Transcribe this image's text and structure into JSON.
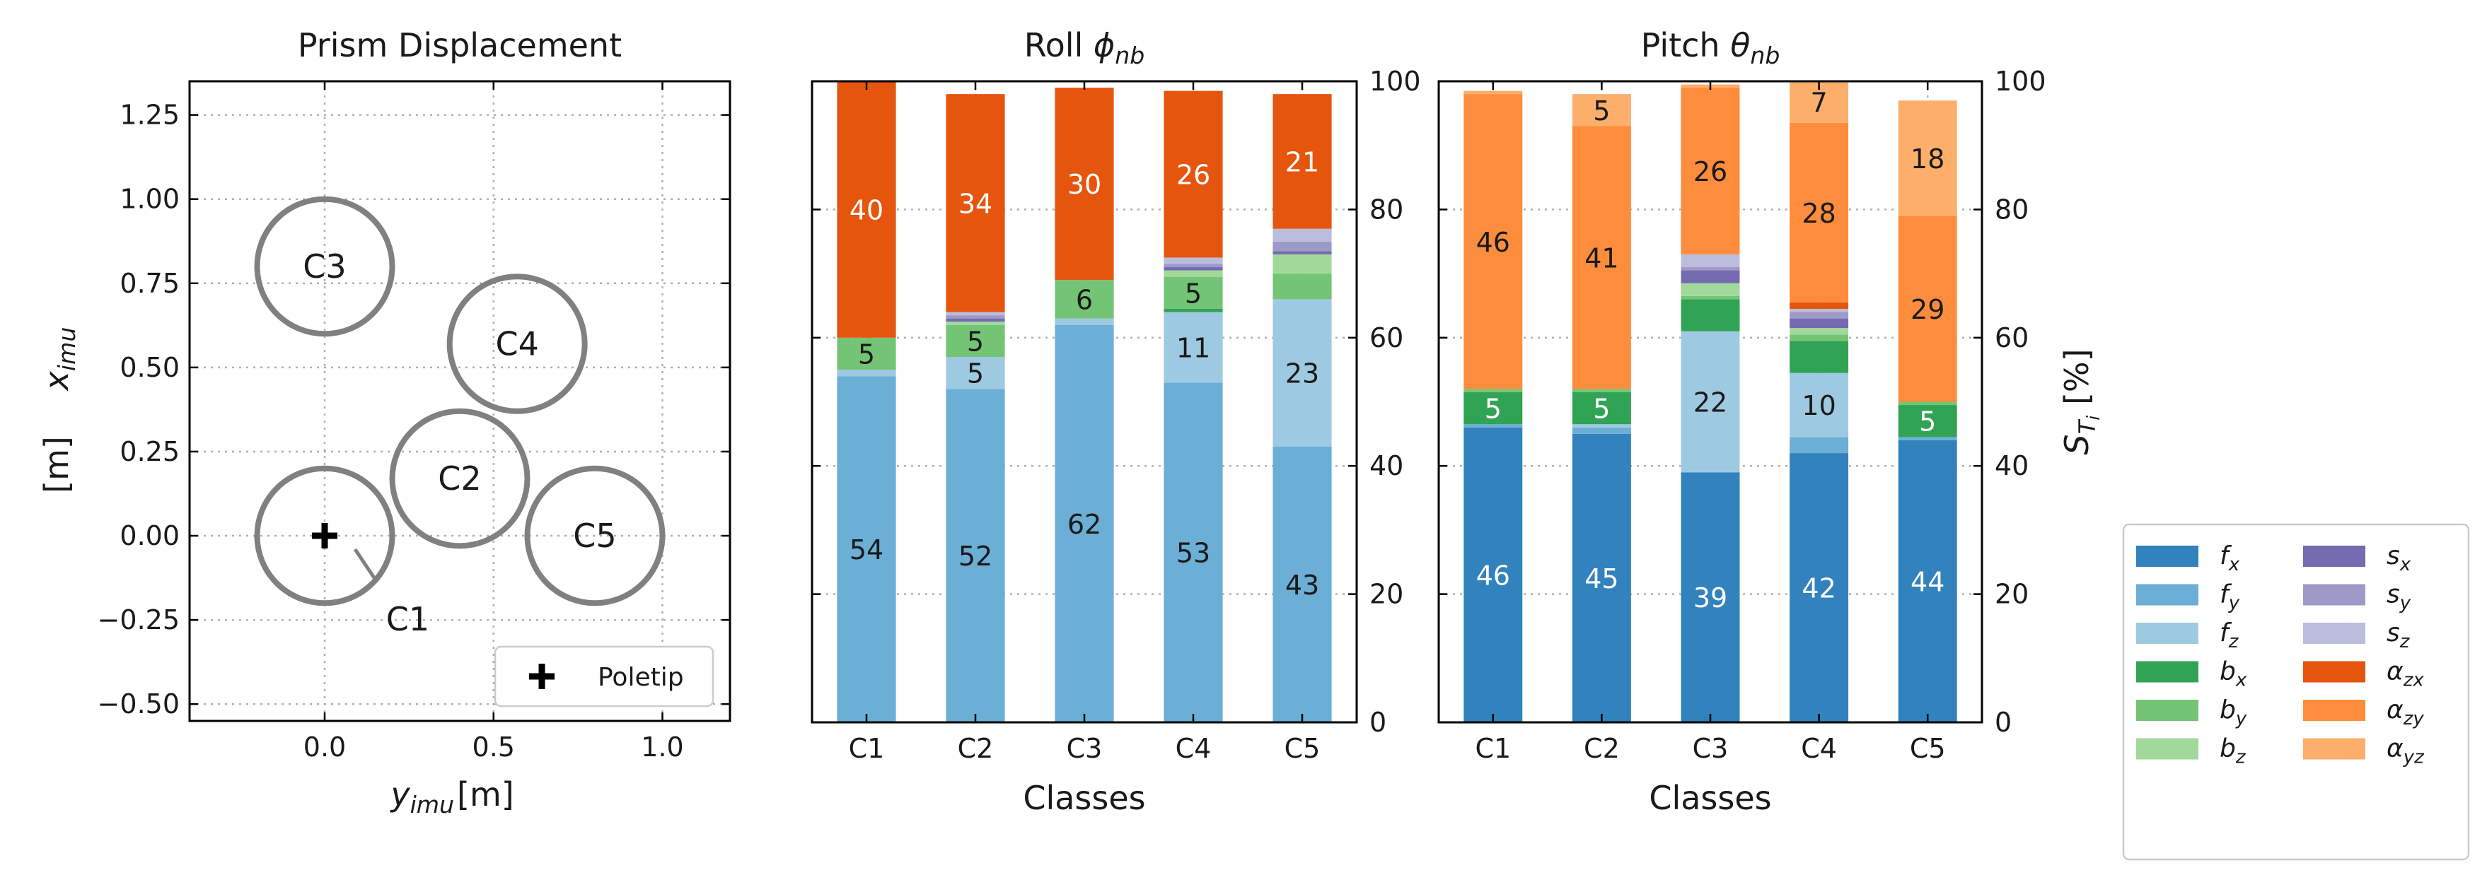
{
  "chart_data": [
    {
      "type": "scatter",
      "title": "Prism Displacement",
      "xlabel": "y_imu [m]",
      "ylabel": "x_imu [m]",
      "xlim": [
        -0.4,
        1.2
      ],
      "ylim": [
        -0.55,
        1.35
      ],
      "xticks": [
        0.0,
        0.5,
        1.0
      ],
      "xtick_labels": [
        "0.0",
        "0.5",
        "1.0"
      ],
      "yticks": [
        -0.5,
        -0.25,
        0.0,
        0.25,
        0.5,
        0.75,
        1.0,
        1.25
      ],
      "ytick_labels": [
        "−0.50",
        "−0.25",
        "0.00",
        "0.25",
        "0.50",
        "0.75",
        "1.00",
        "1.25"
      ],
      "grid": true,
      "circle_radius": 0.2,
      "circles": [
        {
          "name": "C1",
          "x": 0.0,
          "y": 0.0,
          "label_x": 0.2,
          "label_y": -0.13
        },
        {
          "name": "C2",
          "x": 0.4,
          "y": 0.17,
          "label_x": 0.4,
          "label_y": 0.17
        },
        {
          "name": "C3",
          "x": 0.0,
          "y": 0.8,
          "label_x": 0.0,
          "label_y": 0.8
        },
        {
          "name": "C4",
          "x": 0.57,
          "y": 0.57,
          "label_x": 0.57,
          "label_y": 0.57
        },
        {
          "name": "C5",
          "x": 0.8,
          "y": 0.0,
          "label_x": 0.8,
          "label_y": 0.0
        }
      ],
      "poletip": {
        "x": 0.0,
        "y": 0.0
      },
      "legend": {
        "entries": [
          "Poletip"
        ],
        "position": "lower-right"
      }
    },
    {
      "type": "bar",
      "stacked": true,
      "title": "Roll ϕ_nb",
      "xlabel": "Classes",
      "categories": [
        "C1",
        "C2",
        "C3",
        "C4",
        "C5"
      ],
      "ylim": [
        0,
        100
      ],
      "yticks": [
        0,
        20,
        40,
        60,
        80,
        100
      ],
      "series": [
        {
          "name": "f_y",
          "values": [
            54,
            52,
            62,
            53,
            43
          ]
        },
        {
          "name": "f_z",
          "values": [
            1,
            5,
            1,
            11,
            23
          ]
        },
        {
          "name": "b_x",
          "values": [
            0,
            0,
            0,
            0.5,
            0
          ]
        },
        {
          "name": "b_y",
          "values": [
            5,
            5,
            6,
            5,
            4
          ]
        },
        {
          "name": "b_z",
          "values": [
            0,
            0.5,
            0,
            1,
            3
          ]
        },
        {
          "name": "s_x",
          "values": [
            0,
            0.5,
            0,
            0.5,
            0.5
          ]
        },
        {
          "name": "s_y",
          "values": [
            0,
            0.5,
            0,
            0.5,
            1.5
          ]
        },
        {
          "name": "s_z",
          "values": [
            0,
            0.5,
            0,
            1,
            2
          ]
        },
        {
          "name": "α_zx",
          "values": [
            40,
            34,
            30,
            26,
            21
          ]
        }
      ],
      "labels": [
        {
          "series": "f_y",
          "text": [
            "54",
            "52",
            "62",
            "53",
            "43"
          ]
        },
        {
          "series": "f_z",
          "text": [
            "",
            "5",
            "",
            "11",
            "23"
          ]
        },
        {
          "series": "b_y",
          "text": [
            "5",
            "5",
            "6",
            "5",
            ""
          ]
        },
        {
          "series": "α_zx",
          "text": [
            "40",
            "34",
            "30",
            "26",
            "21"
          ]
        }
      ]
    },
    {
      "type": "bar",
      "stacked": true,
      "title": "Pitch  θ_nb",
      "xlabel": "Classes",
      "ylabel": "S_Ti [%]",
      "categories": [
        "C1",
        "C2",
        "C3",
        "C4",
        "C5"
      ],
      "ylim": [
        0,
        100
      ],
      "yticks": [
        0,
        20,
        40,
        60,
        80,
        100
      ],
      "series": [
        {
          "name": "f_x",
          "values": [
            46,
            45,
            39,
            42,
            44
          ]
        },
        {
          "name": "f_y",
          "values": [
            0.5,
            1,
            0,
            2.5,
            0.5
          ]
        },
        {
          "name": "f_z",
          "values": [
            0,
            0.5,
            22,
            10,
            0
          ]
        },
        {
          "name": "b_x",
          "values": [
            5,
            5,
            5,
            5,
            5
          ]
        },
        {
          "name": "b_y",
          "values": [
            0.5,
            0.5,
            0.5,
            1,
            0.5
          ]
        },
        {
          "name": "b_z",
          "values": [
            0,
            0,
            2,
            1,
            0
          ]
        },
        {
          "name": "s_x",
          "values": [
            0,
            0,
            2,
            1.5,
            0
          ]
        },
        {
          "name": "s_y",
          "values": [
            0,
            0,
            0.5,
            1,
            0
          ]
        },
        {
          "name": "s_z",
          "values": [
            0,
            0,
            2,
            0.5,
            0
          ]
        },
        {
          "name": "α_zx",
          "values": [
            0,
            0,
            0,
            1,
            0
          ]
        },
        {
          "name": "α_zy",
          "values": [
            46,
            41,
            26,
            28,
            29
          ]
        },
        {
          "name": "α_yz",
          "values": [
            0.5,
            5,
            0.5,
            7,
            18
          ]
        }
      ],
      "labels": [
        {
          "series": "f_x",
          "text": [
            "46",
            "45",
            "39",
            "42",
            "44"
          ]
        },
        {
          "series": "f_z",
          "text": [
            "",
            "",
            "22",
            "10",
            ""
          ]
        },
        {
          "series": "b_x",
          "text": [
            "5",
            "5",
            "",
            "",
            "5"
          ]
        },
        {
          "series": "α_zy",
          "text": [
            "46",
            "41",
            "26",
            "28",
            "29"
          ]
        },
        {
          "series": "α_yz",
          "text": [
            "",
            "5",
            "",
            "7",
            "18"
          ]
        }
      ]
    }
  ],
  "legend": {
    "entries": [
      {
        "base": "f",
        "sub": "x",
        "color": "#3182bd"
      },
      {
        "base": "f",
        "sub": "y",
        "color": "#6baed6"
      },
      {
        "base": "f",
        "sub": "z",
        "color": "#9ecae1"
      },
      {
        "base": "b",
        "sub": "x",
        "color": "#31a354"
      },
      {
        "base": "b",
        "sub": "y",
        "color": "#74c476"
      },
      {
        "base": "b",
        "sub": "z",
        "color": "#a1d99b"
      },
      {
        "base": "s",
        "sub": "x",
        "color": "#756bb1"
      },
      {
        "base": "s",
        "sub": "y",
        "color": "#9e9ac8"
      },
      {
        "base": "s",
        "sub": "z",
        "color": "#bcbddc"
      },
      {
        "base": "α",
        "sub": "zx",
        "color": "#e6550d"
      },
      {
        "base": "α",
        "sub": "zy",
        "color": "#fd8d3c"
      },
      {
        "base": "α",
        "sub": "yz",
        "color": "#fdae6b"
      }
    ]
  },
  "colors": {
    "f_x": "#3182bd",
    "f_y": "#6baed6",
    "f_z": "#9ecae1",
    "b_x": "#31a354",
    "b_y": "#74c476",
    "b_z": "#a1d99b",
    "s_x": "#756bb1",
    "s_y": "#9e9ac8",
    "s_z": "#bcbddc",
    "α_zx": "#e6550d",
    "α_zy": "#fd8d3c",
    "α_yz": "#fdae6b",
    "circle": "#808080",
    "grid": "#b0b0b0"
  }
}
